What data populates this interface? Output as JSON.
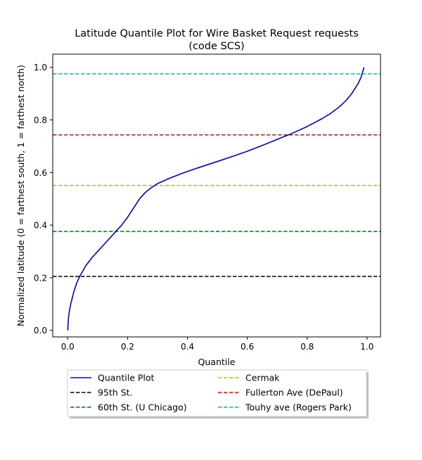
{
  "chart_data": {
    "type": "line",
    "title": "Latitude Quantile Plot for Wire Basket Request  requests",
    "subtitle": "(code SCS)",
    "xlabel": "Quantile",
    "ylabel": "Normalized latitude (0 = farthest south, 1 = farthest north)",
    "xlim": [
      -0.05,
      1.045
    ],
    "ylim": [
      -0.025,
      1.05
    ],
    "xticks": [
      0.0,
      0.2,
      0.4,
      0.6,
      0.8,
      1.0
    ],
    "xtick_labels": [
      "0.0",
      "0.2",
      "0.4",
      "0.6",
      "0.8",
      "1.0"
    ],
    "yticks": [
      0.0,
      0.2,
      0.4,
      0.6,
      0.8,
      1.0
    ],
    "ytick_labels": [
      "0.0",
      "0.2",
      "0.4",
      "0.6",
      "0.8",
      "1.0"
    ],
    "grid": false,
    "legend_position": "below",
    "series": [
      {
        "name": "Quantile Plot",
        "color": "#0000dd",
        "x": [
          0.0,
          0.002,
          0.005,
          0.01,
          0.02,
          0.03,
          0.04,
          0.05,
          0.06,
          0.08,
          0.1,
          0.12,
          0.14,
          0.16,
          0.18,
          0.2,
          0.22,
          0.24,
          0.26,
          0.28,
          0.3,
          0.34,
          0.38,
          0.42,
          0.46,
          0.5,
          0.55,
          0.6,
          0.65,
          0.7,
          0.75,
          0.8,
          0.85,
          0.88,
          0.91,
          0.93,
          0.95,
          0.97,
          0.98,
          0.99
        ],
        "y": [
          0.0,
          0.04,
          0.07,
          0.1,
          0.145,
          0.18,
          0.205,
          0.225,
          0.245,
          0.275,
          0.3,
          0.325,
          0.35,
          0.375,
          0.4,
          0.43,
          0.465,
          0.5,
          0.525,
          0.543,
          0.558,
          0.578,
          0.596,
          0.612,
          0.627,
          0.642,
          0.661,
          0.681,
          0.703,
          0.726,
          0.749,
          0.775,
          0.805,
          0.826,
          0.852,
          0.874,
          0.902,
          0.938,
          0.962,
          1.0
        ]
      },
      {
        "name": "95th St.",
        "color": "#000000",
        "dashed": true,
        "y": 0.205
      },
      {
        "name": "60th St. (U Chicago)",
        "color": "#008000",
        "dashed": true,
        "y": 0.376
      },
      {
        "name": "Cermak",
        "color": "#bfbf00",
        "dashed": true,
        "y": 0.551
      },
      {
        "name": "Fullerton Ave (DePaul)",
        "color": "#ff0000",
        "dashed": true,
        "y": 0.743
      },
      {
        "name": "Touhy ave (Rogers Park)",
        "color": "#00bfbf",
        "dashed": true,
        "y": 0.975
      }
    ]
  }
}
